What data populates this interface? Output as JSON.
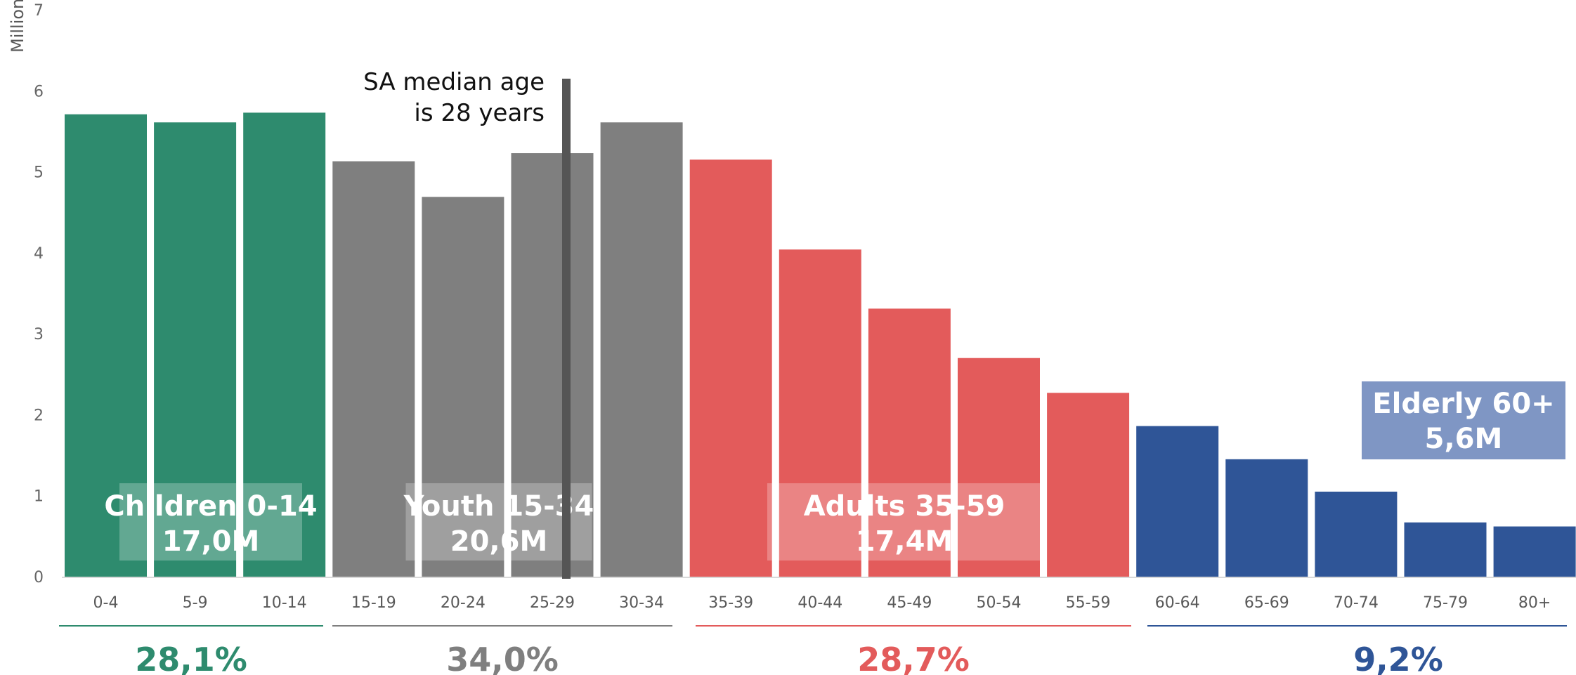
{
  "chart_data": {
    "type": "bar",
    "ylabel": "Millions",
    "ylim": [
      0,
      7
    ],
    "yticks": [
      "0",
      "1",
      "2",
      "3",
      "4",
      "5",
      "6",
      "7"
    ],
    "categories": [
      "0-4",
      "5-9",
      "10-14",
      "15-19",
      "20-24",
      "25-29",
      "30-34",
      "35-39",
      "40-44",
      "45-49",
      "50-54",
      "55-59",
      "60-64",
      "65-69",
      "70-74",
      "75-79",
      "80+"
    ],
    "values": [
      5.71,
      5.61,
      5.73,
      5.13,
      4.69,
      5.23,
      5.61,
      5.15,
      4.04,
      3.31,
      2.7,
      2.27,
      1.86,
      1.45,
      1.05,
      0.67,
      0.62
    ],
    "groups": [
      {
        "label_line1": "Children 0-14",
        "label_line2": "17,0M",
        "share": "28,1%",
        "color": "#2E8B6E",
        "start": 0,
        "end": 2
      },
      {
        "label_line1": "Youth 15-34",
        "label_line2": "20,6M",
        "share": "34,0%",
        "color": "#7F7F7F",
        "start": 3,
        "end": 6
      },
      {
        "label_line1": "Adults 35-59",
        "label_line2": "17,4M",
        "share": "28,7%",
        "color": "#E35B5B",
        "start": 7,
        "end": 11
      },
      {
        "label_line1": "Elderly 60+",
        "label_line2": "5,6M",
        "share": "9,2%",
        "color": "#2F5597",
        "start": 12,
        "end": 16
      }
    ],
    "median_annotation": {
      "line1": "SA median age",
      "line2": "is 28 years",
      "value_years": 28
    },
    "elderly_box_color": "#7F96C4",
    "median_line_color": "#555555",
    "grid": false,
    "legend": "none"
  }
}
